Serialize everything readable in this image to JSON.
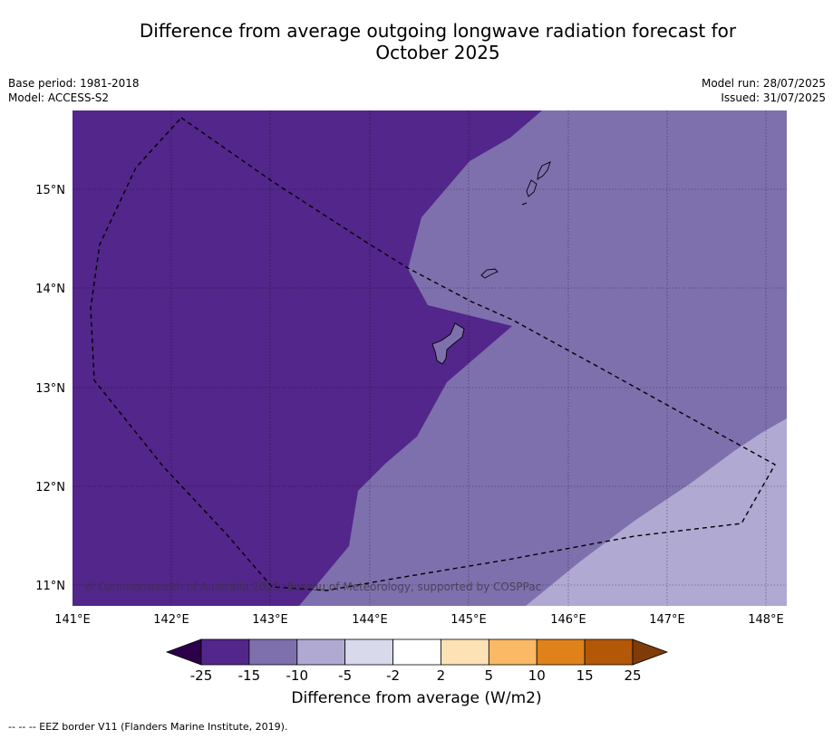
{
  "header": {
    "title_line1": "Difference from average outgoing longwave radiation forecast for",
    "title_line2": "October 2025",
    "base_period": "Base period: 1981-2018",
    "model": "Model: ACCESS-S2",
    "model_run": "Model run: 28/07/2025",
    "issued": "Issued: 31/07/2025"
  },
  "map": {
    "lat_labels": [
      "15°N",
      "14°N",
      "13°N",
      "12°N",
      "11°N"
    ],
    "lon_labels": [
      "141°E",
      "142°E",
      "143°E",
      "144°E",
      "145°E",
      "146°E",
      "147°E",
      "148°E"
    ],
    "copyright": "© Commonwealth of Australia 2025, Bureau of Meteorology, supported by COSPPac"
  },
  "colorbar": {
    "ticks": [
      "-25",
      "-15",
      "-10",
      "-5",
      "-2",
      "2",
      "5",
      "10",
      "15",
      "25"
    ],
    "colors": [
      "#52268a",
      "#7e70ad",
      "#b0a9d2",
      "#d9d9ec",
      "#ffffff",
      "#fde2b6",
      "#fbb865",
      "#e0821a",
      "#b35806"
    ],
    "under_color": "#2d004b",
    "over_color": "#7f3b08",
    "label": "Difference from average (W/m2)"
  },
  "footer": {
    "legend": "--  --  -- EEZ border V11 (Flanders Marine Institute, 2019)."
  }
}
